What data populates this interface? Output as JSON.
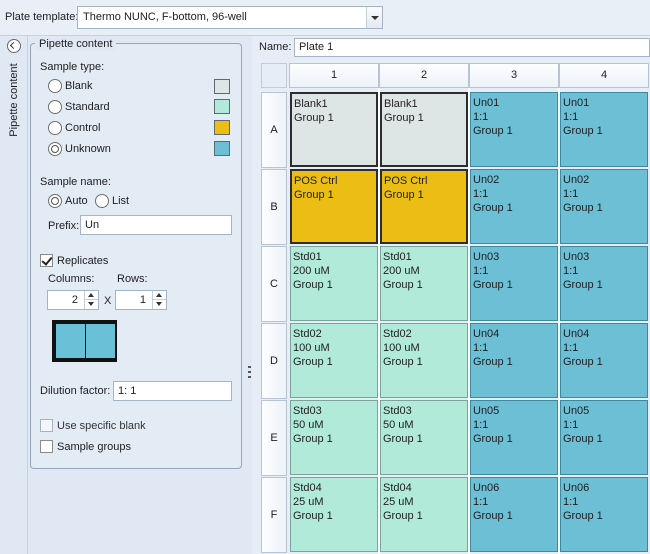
{
  "header": {
    "plate_template_label": "Plate template:",
    "plate_template_value": "Thermo NUNC, F-bottom, 96-well"
  },
  "side_tab": {
    "label": "Pipette content"
  },
  "pipette": {
    "title": "Pipette content",
    "sample_type_label": "Sample type:",
    "types": [
      {
        "label": "Blank",
        "color": "#dee5e5",
        "checked": false
      },
      {
        "label": "Standard",
        "color": "#b2ead9",
        "checked": false
      },
      {
        "label": "Control",
        "color": "#ebbd15",
        "checked": false
      },
      {
        "label": "Unknown",
        "color": "#6dbfd6",
        "checked": true
      }
    ],
    "sample_name_label": "Sample name:",
    "auto_label": "Auto",
    "list_label": "List",
    "prefix_label": "Prefix:",
    "prefix_value": "Un",
    "replicates_label": "Replicates",
    "columns_label": "Columns:",
    "rows_label": "Rows:",
    "columns_value": "2",
    "rows_value": "1",
    "x_label": "X",
    "dilution_label": "Dilution factor:",
    "dilution_value": "1: 1",
    "use_specific_blank_label": "Use specific blank",
    "sample_groups_label": "Sample groups"
  },
  "plate": {
    "name_label": "Name:",
    "name_value": "Plate 1",
    "columns": [
      "1",
      "2",
      "3",
      "4"
    ],
    "rows": [
      "A",
      "B",
      "C",
      "D",
      "E",
      "F"
    ],
    "cells": [
      [
        {
          "type": "blank",
          "lines": [
            "Blank1",
            "Group 1"
          ]
        },
        {
          "type": "blank",
          "lines": [
            "Blank1",
            "Group 1"
          ]
        },
        {
          "type": "unknown",
          "lines": [
            "Un01",
            "1:1",
            "Group 1"
          ]
        },
        {
          "type": "unknown",
          "lines": [
            "Un01",
            "1:1",
            "Group 1"
          ]
        }
      ],
      [
        {
          "type": "control",
          "lines": [
            "POS Ctrl",
            "Group 1"
          ]
        },
        {
          "type": "control",
          "lines": [
            "POS Ctrl",
            "Group 1"
          ]
        },
        {
          "type": "unknown",
          "lines": [
            "Un02",
            "1:1",
            "Group 1"
          ]
        },
        {
          "type": "unknown",
          "lines": [
            "Un02",
            "1:1",
            "Group 1"
          ]
        }
      ],
      [
        {
          "type": "standard",
          "lines": [
            "Std01",
            "200 uM",
            "Group 1"
          ]
        },
        {
          "type": "standard",
          "lines": [
            "Std01",
            "200 uM",
            "Group 1"
          ]
        },
        {
          "type": "unknown",
          "lines": [
            "Un03",
            "1:1",
            "Group 1"
          ]
        },
        {
          "type": "unknown",
          "lines": [
            "Un03",
            "1:1",
            "Group 1"
          ]
        }
      ],
      [
        {
          "type": "standard",
          "lines": [
            "Std02",
            "100 uM",
            "Group 1"
          ]
        },
        {
          "type": "standard",
          "lines": [
            "Std02",
            "100 uM",
            "Group 1"
          ]
        },
        {
          "type": "unknown",
          "lines": [
            "Un04",
            "1:1",
            "Group 1"
          ]
        },
        {
          "type": "unknown",
          "lines": [
            "Un04",
            "1:1",
            "Group 1"
          ]
        }
      ],
      [
        {
          "type": "standard",
          "lines": [
            "Std03",
            "50 uM",
            "Group 1"
          ]
        },
        {
          "type": "standard",
          "lines": [
            "Std03",
            "50 uM",
            "Group 1"
          ]
        },
        {
          "type": "unknown",
          "lines": [
            "Un05",
            "1:1",
            "Group 1"
          ]
        },
        {
          "type": "unknown",
          "lines": [
            "Un05",
            "1:1",
            "Group 1"
          ]
        }
      ],
      [
        {
          "type": "standard",
          "lines": [
            "Std04",
            "25 uM",
            "Group 1"
          ]
        },
        {
          "type": "standard",
          "lines": [
            "Std04",
            "25 uM",
            "Group 1"
          ]
        },
        {
          "type": "unknown",
          "lines": [
            "Un06",
            "1:1",
            "Group 1"
          ]
        },
        {
          "type": "unknown",
          "lines": [
            "Un06",
            "1:1",
            "Group 1"
          ]
        }
      ]
    ]
  }
}
